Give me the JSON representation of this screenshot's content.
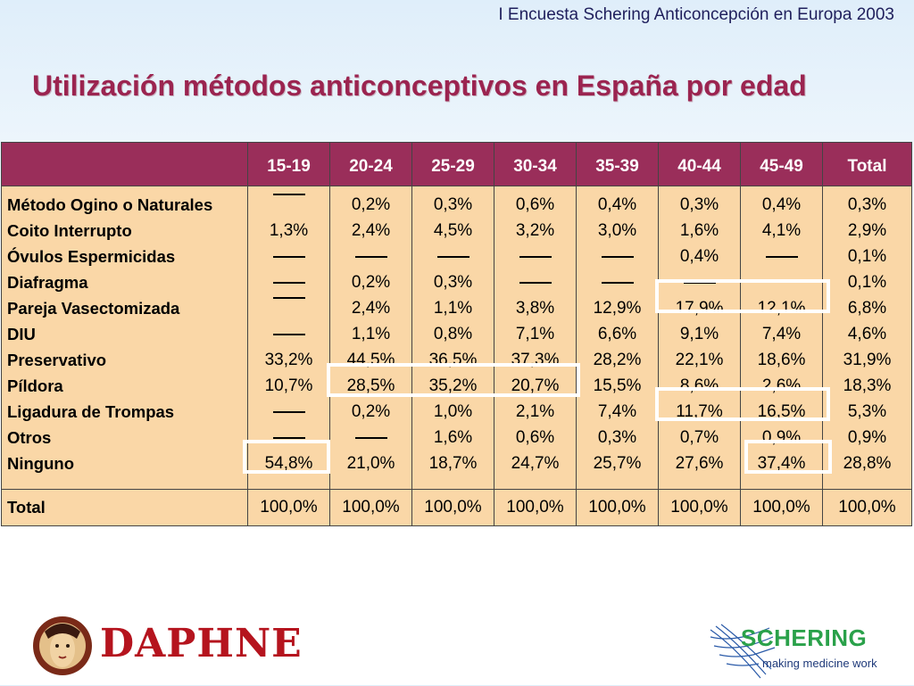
{
  "header": {
    "subtitle": "I Encuesta Schering Anticoncepción en Europa 2003",
    "title": "Utilización métodos anticonceptivos en España por edad"
  },
  "table": {
    "columns": [
      "15-19",
      "20-24",
      "25-29",
      "30-34",
      "35-39",
      "40-44",
      "45-49",
      "Total"
    ],
    "rows": [
      {
        "label": "Método Ogino o Naturales",
        "values": [
          "—",
          "0,2%",
          "0,3%",
          "0,6%",
          "0,4%",
          "0,3%",
          "0,4%",
          "0,3%"
        ]
      },
      {
        "label": "Coito Interrupto",
        "values": [
          "1,3%",
          "2,4%",
          "4,5%",
          "3,2%",
          "3,0%",
          "1,6%",
          "4,1%",
          "2,9%"
        ]
      },
      {
        "label": "Óvulos Espermicidas",
        "values": [
          "—",
          "—",
          "—",
          "—",
          "—",
          "0,4%",
          "—",
          "0,1%"
        ]
      },
      {
        "label": "Diafragma",
        "values": [
          "—",
          "0,2%",
          "0,3%",
          "—",
          "—",
          "—",
          "",
          "0,1%"
        ]
      },
      {
        "label": "Pareja Vasectomizada",
        "values": [
          "—",
          "2,4%",
          "1,1%",
          "3,8%",
          "12,9%",
          "17,9%",
          "12,1%",
          "6,8%"
        ]
      },
      {
        "label": "DIU",
        "values": [
          "—",
          "1,1%",
          "0,8%",
          "7,1%",
          "6,6%",
          "9,1%",
          "7,4%",
          "4,6%"
        ]
      },
      {
        "label": "Preservativo",
        "values": [
          "33,2%",
          "44,5%",
          "36,5%",
          "37,3%",
          "28,2%",
          "22,1%",
          "18,6%",
          "31,9%"
        ]
      },
      {
        "label": "Píldora",
        "values": [
          "10,7%",
          "28,5%",
          "35,2%",
          "20,7%",
          "15,5%",
          "8,6%",
          "2,6%",
          "18,3%"
        ]
      },
      {
        "label": "Ligadura de Trompas",
        "values": [
          "—",
          "0,2%",
          "1,0%",
          "2,1%",
          "7,4%",
          "11,7%",
          "16,5%",
          "5,3%"
        ]
      },
      {
        "label": "Otros",
        "values": [
          "—",
          "—",
          "1,6%",
          "0,6%",
          "0,3%",
          "0,7%",
          "0,9%",
          "0,9%"
        ]
      },
      {
        "label": "Ninguno",
        "values": [
          "54,8%",
          "21,0%",
          "18,7%",
          "24,7%",
          "25,7%",
          "27,6%",
          "37,4%",
          "28,8%"
        ]
      }
    ],
    "total": {
      "label": "Total",
      "values": [
        "100,0%",
        "100,0%",
        "100,0%",
        "100,0%",
        "100,0%",
        "100,0%",
        "100,0%",
        "100,0%"
      ]
    }
  },
  "logos": {
    "daphne": "DAPHNE",
    "schering_name": "SCHERING",
    "schering_tagline": "making medicine work"
  },
  "colors": {
    "title": "#9b2450",
    "header_bg": "#9a2e5a",
    "table_bg": "#fad7a7",
    "schering_green": "#2aa14a"
  }
}
